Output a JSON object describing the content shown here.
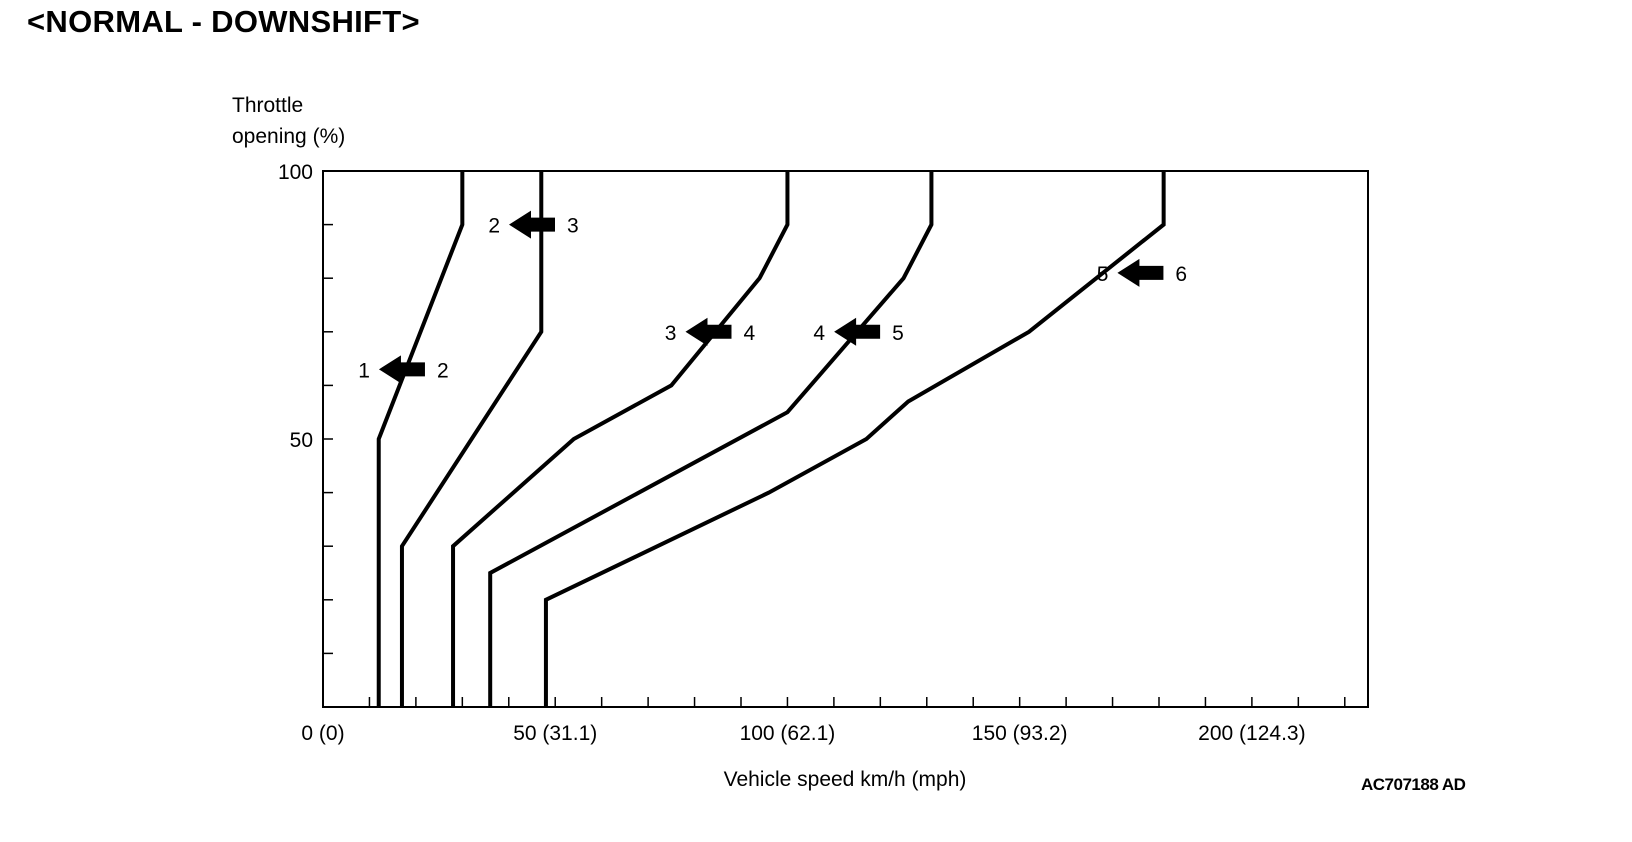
{
  "title": "<NORMAL - DOWNSHIFT>",
  "figure_code": "AC707188 AD",
  "chart_data": {
    "type": "line",
    "title": "<NORMAL - DOWNSHIFT>",
    "ylabel": [
      "Throttle",
      "opening (%)"
    ],
    "xlabel": "Vehicle speed km/h (mph)",
    "xlim": [
      0,
      225
    ],
    "ylim": [
      0,
      100
    ],
    "x_ticks": [
      {
        "value": 0,
        "label": "0 (0)"
      },
      {
        "value": 50,
        "label": "50 (31.1)"
      },
      {
        "value": 100,
        "label": "100 (62.1)"
      },
      {
        "value": 150,
        "label": "150 (93.2)"
      },
      {
        "value": 200,
        "label": "200 (124.3)"
      }
    ],
    "x_minor_step": 10,
    "y_ticks": [
      {
        "value": 50,
        "label": "50"
      },
      {
        "value": 100,
        "label": "100"
      }
    ],
    "y_minor_step": 10,
    "grid": false,
    "series": [
      {
        "from": "2",
        "to": "1",
        "left_label": "1",
        "right_label": "2",
        "marker": [
          17,
          63
        ],
        "points": [
          [
            12,
            0
          ],
          [
            12,
            50
          ],
          [
            30,
            90
          ],
          [
            30,
            100
          ]
        ]
      },
      {
        "from": "3",
        "to": "2",
        "left_label": "2",
        "right_label": "3",
        "marker": [
          45,
          90
        ],
        "points": [
          [
            17,
            0
          ],
          [
            17,
            30
          ],
          [
            47,
            70
          ],
          [
            47,
            100
          ]
        ]
      },
      {
        "from": "4",
        "to": "3",
        "left_label": "3",
        "right_label": "4",
        "marker": [
          83,
          70
        ],
        "points": [
          [
            28,
            0
          ],
          [
            28,
            30
          ],
          [
            54,
            50
          ],
          [
            75,
            60
          ],
          [
            94,
            80
          ],
          [
            100,
            90
          ],
          [
            100,
            100
          ]
        ]
      },
      {
        "from": "5",
        "to": "4",
        "left_label": "4",
        "right_label": "5",
        "marker": [
          115,
          70
        ],
        "points": [
          [
            36,
            0
          ],
          [
            36,
            25
          ],
          [
            100,
            55
          ],
          [
            125,
            80
          ],
          [
            131,
            90
          ],
          [
            131,
            100
          ]
        ]
      },
      {
        "from": "6",
        "to": "5",
        "left_label": "5",
        "right_label": "6",
        "marker": [
          176,
          81
        ],
        "points": [
          [
            48,
            0
          ],
          [
            48,
            20
          ],
          [
            96,
            40
          ],
          [
            117,
            50
          ],
          [
            126,
            57
          ],
          [
            152,
            70
          ],
          [
            181,
            90
          ],
          [
            181,
            100
          ]
        ]
      }
    ]
  }
}
